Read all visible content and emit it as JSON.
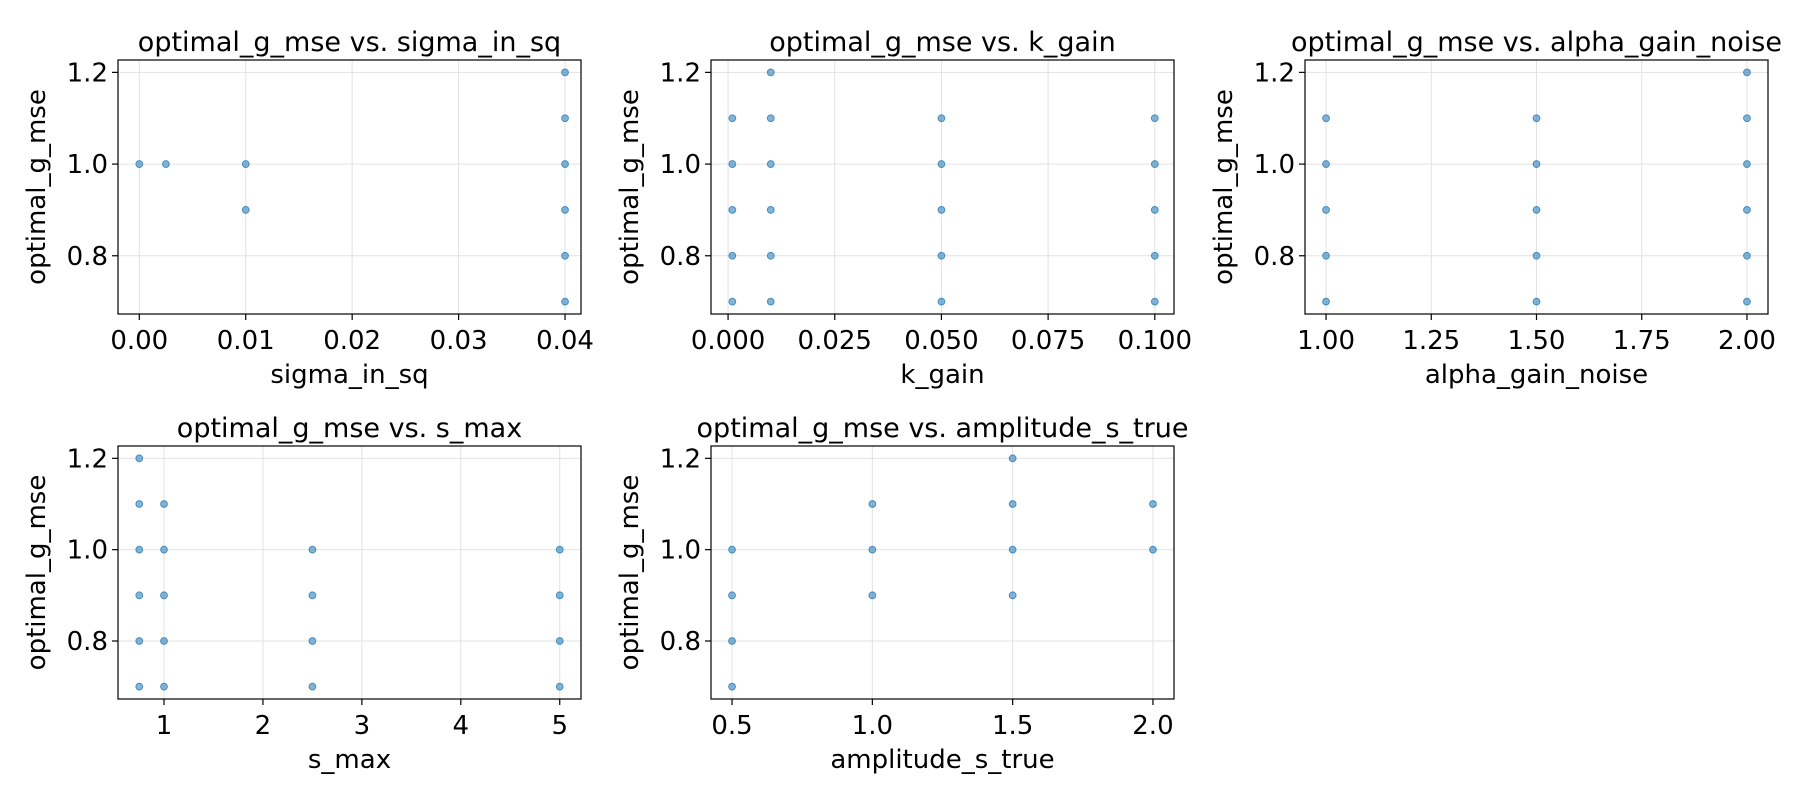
{
  "chart_data": [
    {
      "type": "scatter",
      "title": "optimal_g_mse vs. sigma_in_sq",
      "xlabel": "sigma_in_sq",
      "ylabel": "optimal_g_mse",
      "xlim": [
        -0.002,
        0.0415
      ],
      "ylim": [
        0.673,
        1.227
      ],
      "xticks": [
        0.0,
        0.01,
        0.02,
        0.03,
        0.04
      ],
      "xtick_labels": [
        "0.00",
        "0.01",
        "0.02",
        "0.03",
        "0.04"
      ],
      "yticks": [
        0.8,
        1.0,
        1.2
      ],
      "ytick_labels": [
        "0.8",
        "1.0",
        "1.2"
      ],
      "grid": true,
      "color": "#1f77b4",
      "points": [
        {
          "x": 0.0,
          "y": 1.0
        },
        {
          "x": 0.0025,
          "y": 1.0
        },
        {
          "x": 0.01,
          "y": 1.0
        },
        {
          "x": 0.01,
          "y": 0.9
        },
        {
          "x": 0.04,
          "y": 1.2
        },
        {
          "x": 0.04,
          "y": 1.1
        },
        {
          "x": 0.04,
          "y": 1.0
        },
        {
          "x": 0.04,
          "y": 0.9
        },
        {
          "x": 0.04,
          "y": 0.8
        },
        {
          "x": 0.04,
          "y": 0.7
        }
      ]
    },
    {
      "type": "scatter",
      "title": "optimal_g_mse vs. k_gain",
      "xlabel": "k_gain",
      "ylabel": "optimal_g_mse",
      "xlim": [
        -0.004,
        0.1045
      ],
      "ylim": [
        0.673,
        1.227
      ],
      "xticks": [
        0.0,
        0.025,
        0.05,
        0.075,
        0.1
      ],
      "xtick_labels": [
        "0.000",
        "0.025",
        "0.050",
        "0.075",
        "0.100"
      ],
      "yticks": [
        0.8,
        1.0,
        1.2
      ],
      "ytick_labels": [
        "0.8",
        "1.0",
        "1.2"
      ],
      "grid": true,
      "color": "#1f77b4",
      "points": [
        {
          "x": 0.001,
          "y": 1.1
        },
        {
          "x": 0.001,
          "y": 1.0
        },
        {
          "x": 0.001,
          "y": 0.9
        },
        {
          "x": 0.001,
          "y": 0.8
        },
        {
          "x": 0.001,
          "y": 0.7
        },
        {
          "x": 0.01,
          "y": 1.2
        },
        {
          "x": 0.01,
          "y": 1.1
        },
        {
          "x": 0.01,
          "y": 1.0
        },
        {
          "x": 0.01,
          "y": 0.9
        },
        {
          "x": 0.01,
          "y": 0.8
        },
        {
          "x": 0.01,
          "y": 0.7
        },
        {
          "x": 0.05,
          "y": 1.1
        },
        {
          "x": 0.05,
          "y": 1.0
        },
        {
          "x": 0.05,
          "y": 0.9
        },
        {
          "x": 0.05,
          "y": 0.8
        },
        {
          "x": 0.05,
          "y": 0.7
        },
        {
          "x": 0.1,
          "y": 1.1
        },
        {
          "x": 0.1,
          "y": 1.0
        },
        {
          "x": 0.1,
          "y": 0.9
        },
        {
          "x": 0.1,
          "y": 0.8
        },
        {
          "x": 0.1,
          "y": 0.7
        }
      ]
    },
    {
      "type": "scatter",
      "title": "optimal_g_mse vs. alpha_gain_noise",
      "xlabel": "alpha_gain_noise",
      "ylabel": "optimal_g_mse",
      "xlim": [
        0.95,
        2.05
      ],
      "ylim": [
        0.673,
        1.227
      ],
      "xticks": [
        1.0,
        1.25,
        1.5,
        1.75,
        2.0
      ],
      "xtick_labels": [
        "1.00",
        "1.25",
        "1.50",
        "1.75",
        "2.00"
      ],
      "yticks": [
        0.8,
        1.0,
        1.2
      ],
      "ytick_labels": [
        "0.8",
        "1.0",
        "1.2"
      ],
      "grid": true,
      "color": "#1f77b4",
      "points": [
        {
          "x": 1.0,
          "y": 1.1
        },
        {
          "x": 1.0,
          "y": 1.0
        },
        {
          "x": 1.0,
          "y": 0.9
        },
        {
          "x": 1.0,
          "y": 0.8
        },
        {
          "x": 1.0,
          "y": 0.7
        },
        {
          "x": 1.5,
          "y": 1.1
        },
        {
          "x": 1.5,
          "y": 1.0
        },
        {
          "x": 1.5,
          "y": 0.9
        },
        {
          "x": 1.5,
          "y": 0.8
        },
        {
          "x": 1.5,
          "y": 0.7
        },
        {
          "x": 2.0,
          "y": 1.2
        },
        {
          "x": 2.0,
          "y": 1.1
        },
        {
          "x": 2.0,
          "y": 1.0
        },
        {
          "x": 2.0,
          "y": 0.9
        },
        {
          "x": 2.0,
          "y": 0.8
        },
        {
          "x": 2.0,
          "y": 0.7
        }
      ]
    },
    {
      "type": "scatter",
      "title": "optimal_g_mse vs. s_max",
      "xlabel": "s_max",
      "ylabel": "optimal_g_mse",
      "xlim": [
        0.535,
        5.215
      ],
      "ylim": [
        0.673,
        1.227
      ],
      "xticks": [
        1,
        2,
        3,
        4,
        5
      ],
      "xtick_labels": [
        "1",
        "2",
        "3",
        "4",
        "5"
      ],
      "yticks": [
        0.8,
        1.0,
        1.2
      ],
      "ytick_labels": [
        "0.8",
        "1.0",
        "1.2"
      ],
      "grid": true,
      "color": "#1f77b4",
      "points": [
        {
          "x": 0.75,
          "y": 1.2
        },
        {
          "x": 0.75,
          "y": 1.1
        },
        {
          "x": 0.75,
          "y": 1.0
        },
        {
          "x": 0.75,
          "y": 0.9
        },
        {
          "x": 0.75,
          "y": 0.8
        },
        {
          "x": 0.75,
          "y": 0.7
        },
        {
          "x": 1.0,
          "y": 1.1
        },
        {
          "x": 1.0,
          "y": 1.0
        },
        {
          "x": 1.0,
          "y": 0.9
        },
        {
          "x": 1.0,
          "y": 0.8
        },
        {
          "x": 1.0,
          "y": 0.7
        },
        {
          "x": 2.5,
          "y": 1.0
        },
        {
          "x": 2.5,
          "y": 0.9
        },
        {
          "x": 2.5,
          "y": 0.8
        },
        {
          "x": 2.5,
          "y": 0.7
        },
        {
          "x": 5.0,
          "y": 1.0
        },
        {
          "x": 5.0,
          "y": 0.9
        },
        {
          "x": 5.0,
          "y": 0.8
        },
        {
          "x": 5.0,
          "y": 0.7
        }
      ]
    },
    {
      "type": "scatter",
      "title": "optimal_g_mse vs. amplitude_s_true",
      "xlabel": "amplitude_s_true",
      "ylabel": "optimal_g_mse",
      "xlim": [
        0.425,
        2.075
      ],
      "ylim": [
        0.673,
        1.227
      ],
      "xticks": [
        0.5,
        1.0,
        1.5,
        2.0
      ],
      "xtick_labels": [
        "0.5",
        "1.0",
        "1.5",
        "2.0"
      ],
      "yticks": [
        0.8,
        1.0,
        1.2
      ],
      "ytick_labels": [
        "0.8",
        "1.0",
        "1.2"
      ],
      "grid": true,
      "color": "#1f77b4",
      "points": [
        {
          "x": 0.5,
          "y": 1.0
        },
        {
          "x": 0.5,
          "y": 0.9
        },
        {
          "x": 0.5,
          "y": 0.8
        },
        {
          "x": 0.5,
          "y": 0.7
        },
        {
          "x": 1.0,
          "y": 1.1
        },
        {
          "x": 1.0,
          "y": 1.0
        },
        {
          "x": 1.0,
          "y": 0.9
        },
        {
          "x": 1.5,
          "y": 1.2
        },
        {
          "x": 1.5,
          "y": 1.1
        },
        {
          "x": 1.5,
          "y": 1.0
        },
        {
          "x": 1.5,
          "y": 0.9
        },
        {
          "x": 2.0,
          "y": 1.1
        },
        {
          "x": 2.0,
          "y": 1.0
        }
      ]
    }
  ]
}
